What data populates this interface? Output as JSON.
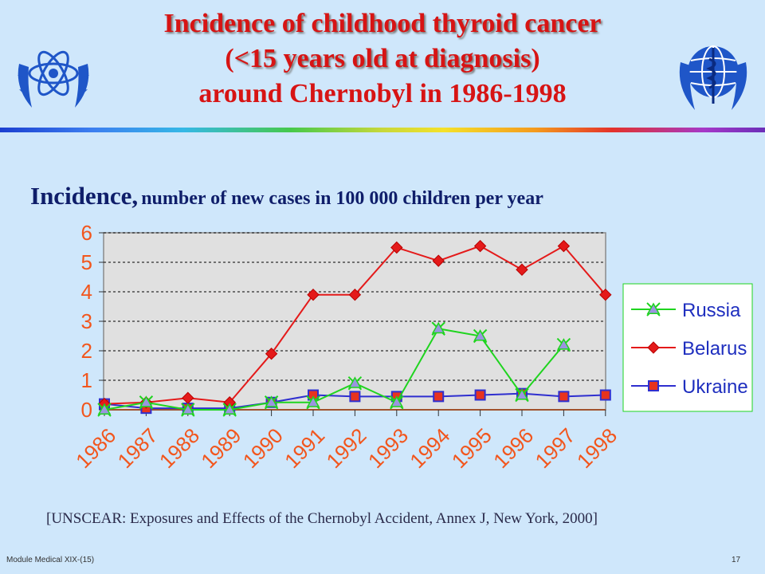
{
  "title": {
    "line1": "Incidence of childhood thyroid cancer",
    "line2_prefix": "(",
    "line2_main": "<15 years old at diagnosis",
    "line2_suffix": ")",
    "line3": "around Chernobyl in 1986-1998"
  },
  "subtitle": {
    "main": "Incidence,",
    "rest": "number of new cases in 100 000 children per year"
  },
  "citation": "[UNSCEAR: Exposures and Effects of the Chernobyl Accident, Annex J, New York, 2000]",
  "footer": {
    "left": "Module Medical XIX-(15)",
    "page": "17"
  },
  "logos": {
    "left": "iaea-atom-emblem",
    "right": "who-emblem",
    "color": "#1f56c8"
  },
  "chart_data": {
    "type": "line",
    "categories": [
      "1986",
      "1987",
      "1988",
      "1989",
      "1990",
      "1991",
      "1992",
      "1993",
      "1994",
      "1995",
      "1996",
      "1997",
      "1998"
    ],
    "ylim": [
      0,
      6
    ],
    "yticks": [
      "0",
      "1",
      "2",
      "3",
      "4",
      "5",
      "6"
    ],
    "grid": true,
    "legend_position": "right",
    "series": [
      {
        "name": "Russia",
        "color": "#1fd41f",
        "marker": "triangle",
        "marker_color": "#9b95e0",
        "values": [
          0.0,
          0.25,
          0.0,
          0.0,
          0.25,
          0.25,
          0.9,
          0.25,
          2.75,
          2.5,
          0.5,
          2.2,
          null
        ]
      },
      {
        "name": "Belarus",
        "color": "#e41a1a",
        "marker": "diamond",
        "marker_color": "#e41a1a",
        "values": [
          0.2,
          0.25,
          0.4,
          0.25,
          1.9,
          3.9,
          3.9,
          5.5,
          5.05,
          5.55,
          4.75,
          5.55,
          3.9
        ]
      },
      {
        "name": "Ukraine",
        "color": "#2f2fcf",
        "marker": "square",
        "marker_color": "#e8331e",
        "values": [
          0.2,
          0.05,
          0.05,
          0.05,
          0.25,
          0.5,
          0.45,
          0.45,
          0.45,
          0.5,
          0.55,
          0.45,
          0.5
        ]
      }
    ]
  }
}
